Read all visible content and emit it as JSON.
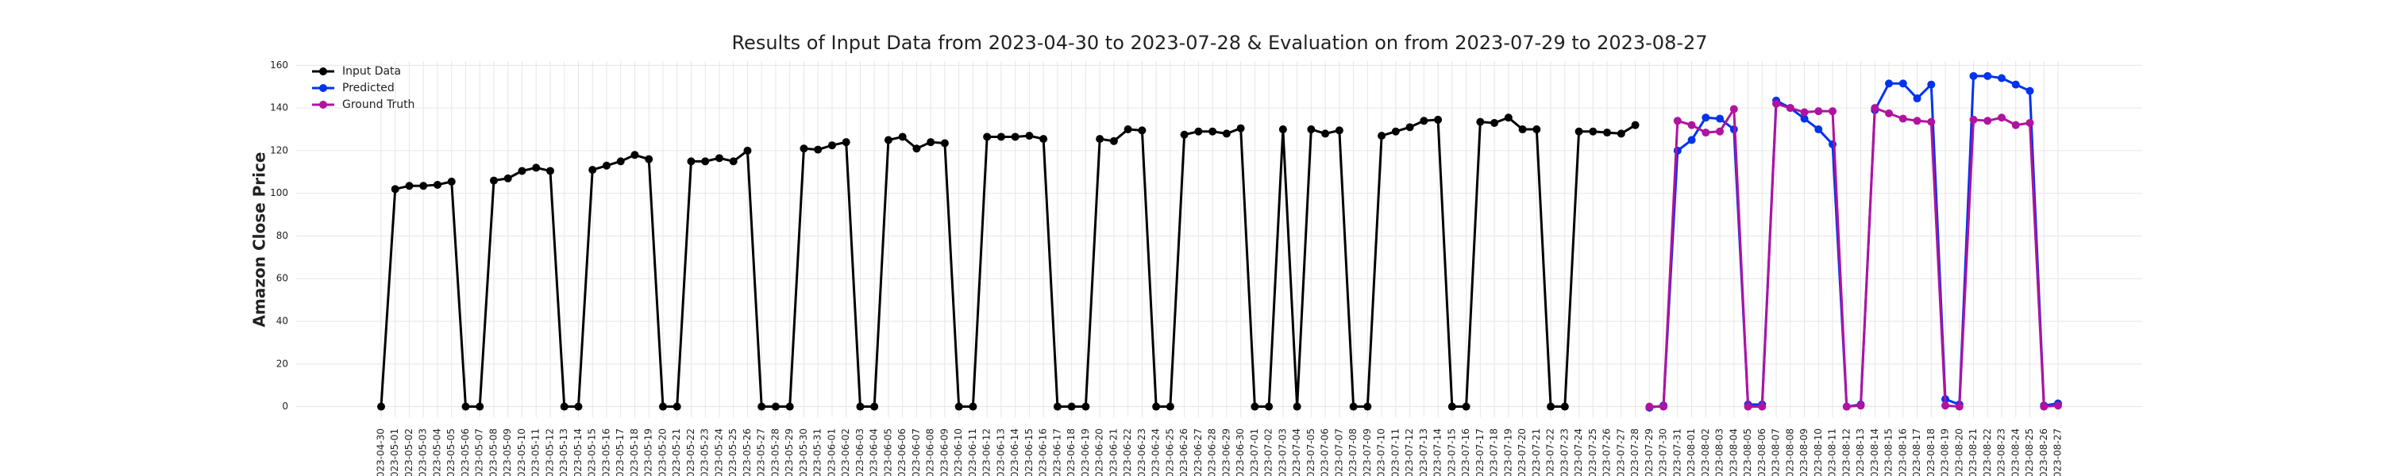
{
  "chart_data": {
    "type": "line",
    "title": "Results of Input Data from 2023-04-30 to 2023-07-28 & Evaluation on from 2023-07-29 to 2023-08-27",
    "y_label": "Amazon Close Price",
    "x": [
      "2023-04-30",
      "2023-05-01",
      "2023-05-02",
      "2023-05-03",
      "2023-05-04",
      "2023-05-05",
      "2023-05-06",
      "2023-05-07",
      "2023-05-08",
      "2023-05-09",
      "2023-05-10",
      "2023-05-11",
      "2023-05-12",
      "2023-05-13",
      "2023-05-14",
      "2023-05-15",
      "2023-05-16",
      "2023-05-17",
      "2023-05-18",
      "2023-05-19",
      "2023-05-20",
      "2023-05-21",
      "2023-05-22",
      "2023-05-23",
      "2023-05-24",
      "2023-05-25",
      "2023-05-26",
      "2023-05-27",
      "2023-05-28",
      "2023-05-29",
      "2023-05-30",
      "2023-05-31",
      "2023-06-01",
      "2023-06-02",
      "2023-06-03",
      "2023-06-04",
      "2023-06-05",
      "2023-06-06",
      "2023-06-07",
      "2023-06-08",
      "2023-06-09",
      "2023-06-10",
      "2023-06-11",
      "2023-06-12",
      "2023-06-13",
      "2023-06-14",
      "2023-06-15",
      "2023-06-16",
      "2023-06-17",
      "2023-06-18",
      "2023-06-19",
      "2023-06-20",
      "2023-06-21",
      "2023-06-22",
      "2023-06-23",
      "2023-06-24",
      "2023-06-25",
      "2023-06-26",
      "2023-06-27",
      "2023-06-28",
      "2023-06-29",
      "2023-06-30",
      "2023-07-01",
      "2023-07-02",
      "2023-07-03",
      "2023-07-04",
      "2023-07-05",
      "2023-07-06",
      "2023-07-07",
      "2023-07-08",
      "2023-07-09",
      "2023-07-10",
      "2023-07-11",
      "2023-07-12",
      "2023-07-13",
      "2023-07-14",
      "2023-07-15",
      "2023-07-16",
      "2023-07-17",
      "2023-07-18",
      "2023-07-19",
      "2023-07-20",
      "2023-07-21",
      "2023-07-22",
      "2023-07-23",
      "2023-07-24",
      "2023-07-25",
      "2023-07-26",
      "2023-07-27",
      "2023-07-28",
      "2023-07-29",
      "2023-07-30",
      "2023-07-31",
      "2023-08-01",
      "2023-08-02",
      "2023-08-03",
      "2023-08-04",
      "2023-08-05",
      "2023-08-06",
      "2023-08-07",
      "2023-08-08",
      "2023-08-09",
      "2023-08-10",
      "2023-08-11",
      "2023-08-12",
      "2023-08-13",
      "2023-08-14",
      "2023-08-15",
      "2023-08-16",
      "2023-08-17",
      "2023-08-18",
      "2023-08-19",
      "2023-08-20",
      "2023-08-21",
      "2023-08-22",
      "2023-08-23",
      "2023-08-24",
      "2023-08-25",
      "2023-08-26",
      "2023-08-27"
    ],
    "series": [
      {
        "name": "Input Data",
        "color": "#000000",
        "values": [
          0,
          102,
          103.5,
          103.5,
          104,
          105.5,
          0,
          0,
          106,
          107,
          110.5,
          112,
          110.5,
          0,
          0,
          111,
          113,
          115,
          118,
          116,
          0,
          0,
          115,
          115,
          116.5,
          115,
          120,
          0,
          0,
          0,
          121,
          120.5,
          122.5,
          124,
          0,
          0,
          125,
          126.5,
          121,
          124,
          123.5,
          0,
          0,
          126.5,
          126.5,
          126.5,
          127,
          125.5,
          0,
          0,
          0,
          125.5,
          124.5,
          130,
          129.5,
          0,
          0,
          127.5,
          129,
          129,
          128,
          130.5,
          0,
          0,
          130,
          0,
          130,
          128,
          129.5,
          0,
          0,
          127,
          129,
          131,
          134,
          134.5,
          0,
          0,
          133.5,
          133,
          135.5,
          130,
          130,
          0,
          0,
          129,
          129,
          128.5,
          128,
          132,
          null,
          null,
          null,
          null,
          null,
          null,
          null,
          null,
          null,
          null,
          null,
          null,
          null,
          null,
          null,
          null,
          null,
          null,
          null,
          null,
          null,
          null,
          null,
          null,
          null,
          null,
          null,
          null,
          null,
          null
        ]
      },
      {
        "name": "Predicted",
        "color": "#0033ee",
        "values": [
          null,
          null,
          null,
          null,
          null,
          null,
          null,
          null,
          null,
          null,
          null,
          null,
          null,
          null,
          null,
          null,
          null,
          null,
          null,
          null,
          null,
          null,
          null,
          null,
          null,
          null,
          null,
          null,
          null,
          null,
          null,
          null,
          null,
          null,
          null,
          null,
          null,
          null,
          null,
          null,
          null,
          null,
          null,
          null,
          null,
          null,
          null,
          null,
          null,
          null,
          null,
          null,
          null,
          null,
          null,
          null,
          null,
          null,
          null,
          null,
          null,
          null,
          null,
          null,
          null,
          null,
          null,
          null,
          null,
          null,
          null,
          null,
          null,
          null,
          null,
          null,
          null,
          null,
          null,
          null,
          null,
          null,
          null,
          null,
          null,
          null,
          null,
          null,
          null,
          null,
          -0.5,
          0.5,
          120,
          125,
          135.5,
          135,
          130,
          1,
          1,
          143.5,
          140,
          135,
          130,
          123,
          0,
          1,
          139,
          151.5,
          151.5,
          144.5,
          151,
          3.5,
          1,
          155,
          155,
          154,
          151,
          148,
          0.5,
          1.5
        ]
      },
      {
        "name": "Ground Truth",
        "color": "#b0139f",
        "values": [
          null,
          null,
          null,
          null,
          null,
          null,
          null,
          null,
          null,
          null,
          null,
          null,
          null,
          null,
          null,
          null,
          null,
          null,
          null,
          null,
          null,
          null,
          null,
          null,
          null,
          null,
          null,
          null,
          null,
          null,
          null,
          null,
          null,
          null,
          null,
          null,
          null,
          null,
          null,
          null,
          null,
          null,
          null,
          null,
          null,
          null,
          null,
          null,
          null,
          null,
          null,
          null,
          null,
          null,
          null,
          null,
          null,
          null,
          null,
          null,
          null,
          null,
          null,
          null,
          null,
          null,
          null,
          null,
          null,
          null,
          null,
          null,
          null,
          null,
          null,
          null,
          null,
          null,
          null,
          null,
          null,
          null,
          null,
          null,
          null,
          null,
          null,
          null,
          null,
          null,
          0,
          0,
          134,
          132,
          128.5,
          129,
          139.5,
          0,
          0,
          142,
          140,
          138,
          138.5,
          138.5,
          0,
          0.5,
          140,
          137.5,
          135,
          134,
          133.5,
          0.5,
          0,
          134.5,
          134,
          135.5,
          132,
          133,
          0,
          0.5
        ]
      }
    ],
    "ylim": [
      -5,
      162
    ],
    "yticks": [
      0,
      20,
      40,
      60,
      80,
      100,
      120,
      140,
      160
    ],
    "grid": true,
    "legend": "upper left"
  }
}
